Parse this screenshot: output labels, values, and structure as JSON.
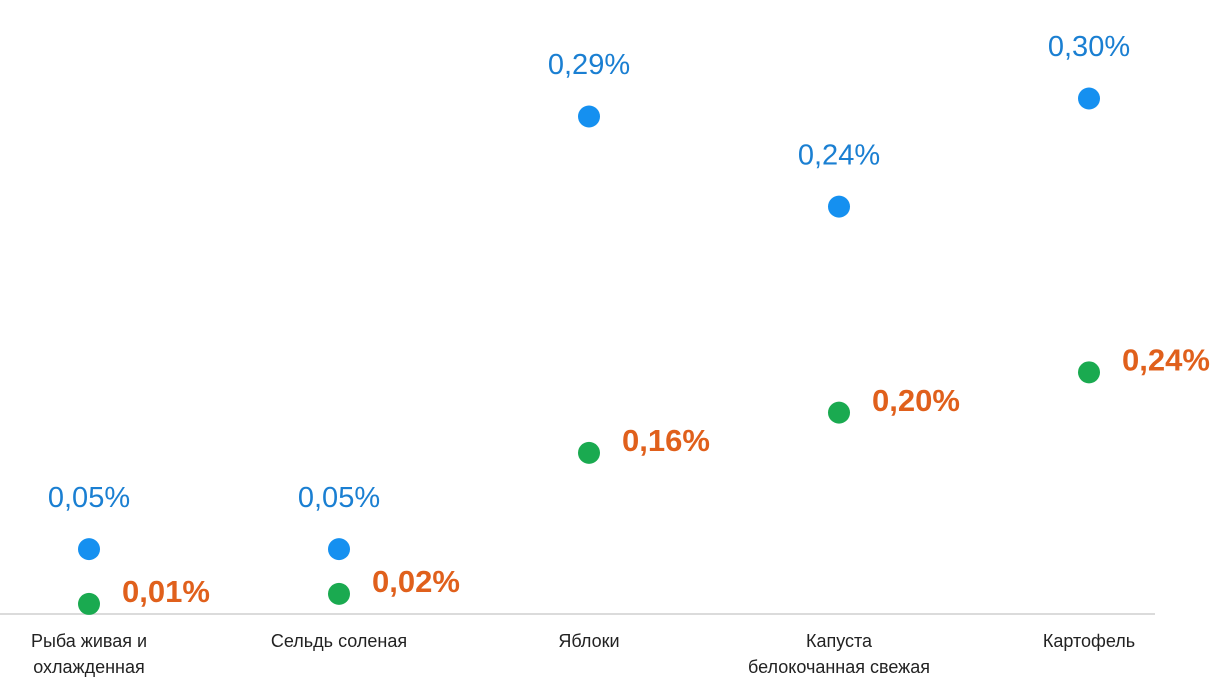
{
  "chart_data": {
    "type": "dot",
    "categories": [
      "Рыба живая и\nохлажденная",
      "Сельдь соленая",
      "Яблоки",
      "Капуста\nбелокочанная свежая",
      "Картофель"
    ],
    "series": [
      {
        "name": null,
        "color": "#1590f0",
        "label_color": "#1a7fd2",
        "axis": "y2",
        "values": [
          0.05,
          0.05,
          0.29,
          0.24,
          0.3
        ],
        "value_labels": [
          "0,05%",
          "0,05%",
          "0,29%",
          "0,24%",
          "0,30%"
        ]
      },
      {
        "name": null,
        "color": "#1aaa50",
        "label_color": "#e0601c",
        "axis": "y",
        "values": [
          0.01,
          0.02,
          0.16,
          0.2,
          0.24
        ],
        "value_labels": [
          "0,01%",
          "0,02%",
          "0,16%",
          "0,20%",
          "0,24%"
        ]
      }
    ],
    "ylim": [
      0,
      0.58
    ],
    "y2lim": [
      0.014,
      0.338
    ]
  }
}
